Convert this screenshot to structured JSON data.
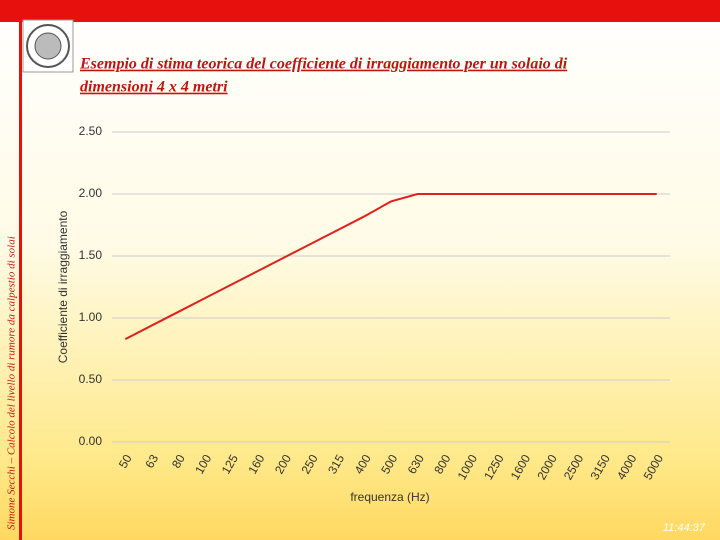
{
  "sidebar": "Simone Secchi – Calcolo del livello di rumore da calpestio di solai",
  "title_lines": [
    "Esempio di stima teorica del coefficiente di irraggiamento per un solaio di",
    "dimensioni 4 x 4 metri"
  ],
  "timestamp": "11:44:37",
  "chart_data": {
    "type": "line",
    "xlabel": "frequenza (Hz)",
    "ylabel": "Coefficiente di irraggiamento",
    "categories": [
      "50",
      "63",
      "80",
      "100",
      "125",
      "160",
      "200",
      "250",
      "315",
      "400",
      "500",
      "630",
      "800",
      "1000",
      "1250",
      "1600",
      "2000",
      "2500",
      "3150",
      "4000",
      "5000"
    ],
    "series": [
      {
        "name": "Coefficiente di irraggiamento",
        "color": "#e0201b",
        "values": [
          0.83,
          0.94,
          1.05,
          1.16,
          1.27,
          1.38,
          1.49,
          1.6,
          1.71,
          1.82,
          1.94,
          2.0,
          2.0,
          2.0,
          2.0,
          2.0,
          2.0,
          2.0,
          2.0,
          2.0,
          2.0
        ]
      }
    ],
    "ylim": [
      0,
      2.5
    ],
    "yticks": [
      {
        "value": 0,
        "label": "0.00"
      },
      {
        "value": 0.5,
        "label": "0.50"
      },
      {
        "value": 1,
        "label": "1.00"
      },
      {
        "value": 1.5,
        "label": "1.50"
      },
      {
        "value": 2,
        "label": "2.00"
      },
      {
        "value": 2.5,
        "label": "2.50"
      }
    ],
    "grid": true
  }
}
